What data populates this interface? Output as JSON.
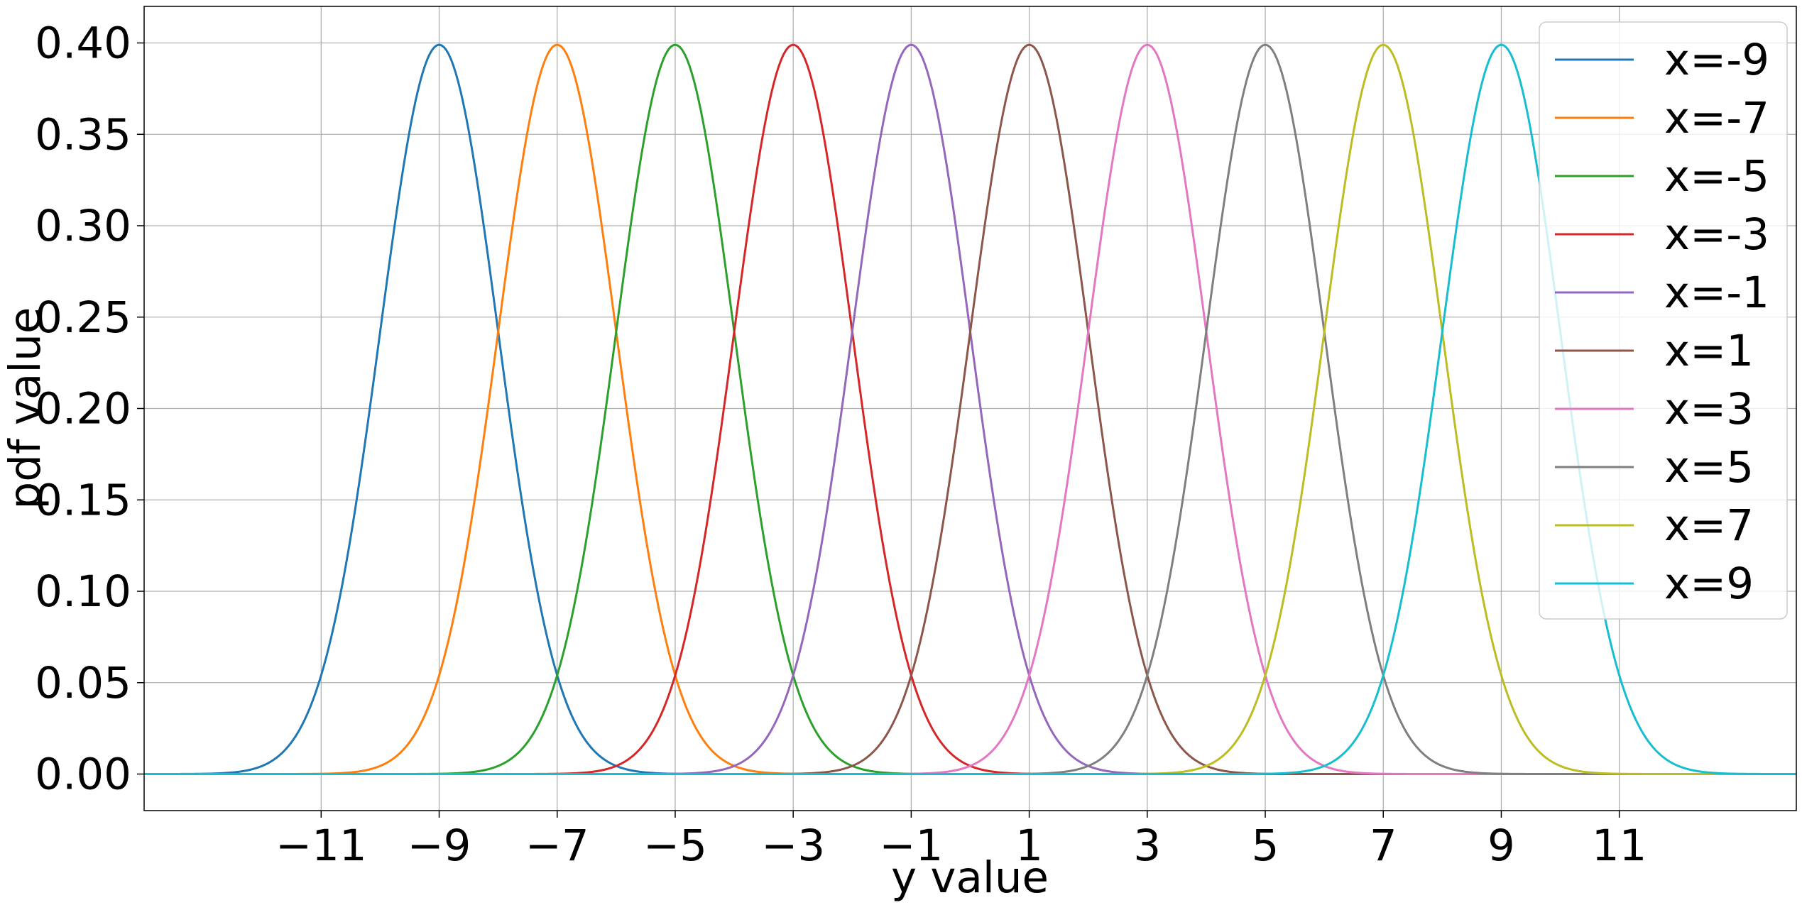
{
  "chart_data": {
    "type": "line",
    "title": "",
    "xlabel": "y value",
    "ylabel": "pdf value",
    "xlim": [
      -14,
      14
    ],
    "ylim": [
      -0.02,
      0.42
    ],
    "xticks": [
      -11,
      -9,
      -7,
      -5,
      -3,
      -1,
      1,
      3,
      5,
      7,
      9,
      11
    ],
    "xtick_labels": [
      "−11",
      "−9",
      "−7",
      "−5",
      "−3",
      "−1",
      "1",
      "3",
      "5",
      "7",
      "9",
      "11"
    ],
    "yticks": [
      0.0,
      0.05,
      0.1,
      0.15,
      0.2,
      0.25,
      0.3,
      0.35,
      0.4
    ],
    "ytick_labels": [
      "0.00",
      "0.05",
      "0.10",
      "0.15",
      "0.20",
      "0.25",
      "0.30",
      "0.35",
      "0.40"
    ],
    "grid": true,
    "legend_position": "top-right",
    "distribution": "normal pdf, sigma = 1",
    "series": [
      {
        "name": "x=-9",
        "mean": -9,
        "std": 1,
        "peak": 0.399,
        "color": "#1f77b4"
      },
      {
        "name": "x=-7",
        "mean": -7,
        "std": 1,
        "peak": 0.399,
        "color": "#ff7f0e"
      },
      {
        "name": "x=-5",
        "mean": -5,
        "std": 1,
        "peak": 0.399,
        "color": "#2ca02c"
      },
      {
        "name": "x=-3",
        "mean": -3,
        "std": 1,
        "peak": 0.399,
        "color": "#d62728"
      },
      {
        "name": "x=-1",
        "mean": -1,
        "std": 1,
        "peak": 0.399,
        "color": "#9467bd"
      },
      {
        "name": "x=1",
        "mean": 1,
        "std": 1,
        "peak": 0.399,
        "color": "#8c564b"
      },
      {
        "name": "x=3",
        "mean": 3,
        "std": 1,
        "peak": 0.399,
        "color": "#e377c2"
      },
      {
        "name": "x=5",
        "mean": 5,
        "std": 1,
        "peak": 0.399,
        "color": "#7f7f7f"
      },
      {
        "name": "x=7",
        "mean": 7,
        "std": 1,
        "peak": 0.399,
        "color": "#bcbd22"
      },
      {
        "name": "x=9",
        "mean": 9,
        "std": 1,
        "peak": 0.399,
        "color": "#17becf"
      }
    ]
  }
}
